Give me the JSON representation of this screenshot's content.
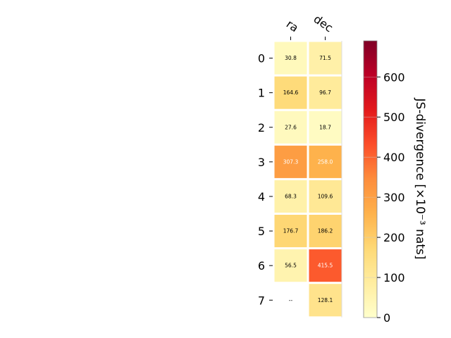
{
  "chart_data": {
    "type": "heatmap",
    "columns": [
      "ra",
      "dec"
    ],
    "rows": [
      "0",
      "1",
      "2",
      "3",
      "4",
      "5",
      "6",
      "7"
    ],
    "values": [
      [
        30.8,
        71.5
      ],
      [
        164.6,
        96.7
      ],
      [
        27.6,
        18.7
      ],
      [
        307.3,
        258.0
      ],
      [
        68.3,
        109.6
      ],
      [
        176.7,
        186.2
      ],
      [
        56.5,
        415.5
      ],
      [
        null,
        128.1
      ]
    ],
    "cell_labels": [
      [
        "30.8",
        "71.5"
      ],
      [
        "164.6",
        "96.7"
      ],
      [
        "27.6",
        "18.7"
      ],
      [
        "307.3",
        "258.0"
      ],
      [
        "68.3",
        "109.6"
      ],
      [
        "176.7",
        "186.2"
      ],
      [
        "56.5",
        "415.5"
      ],
      [
        "--",
        "128.1"
      ]
    ],
    "colorbar": {
      "label": "JS-divergence [×10⁻³ nats]",
      "vmin": 0,
      "vmax": 690,
      "ticks": [
        0,
        100,
        200,
        300,
        400,
        500,
        600
      ],
      "colormap": "YlOrRd"
    }
  }
}
